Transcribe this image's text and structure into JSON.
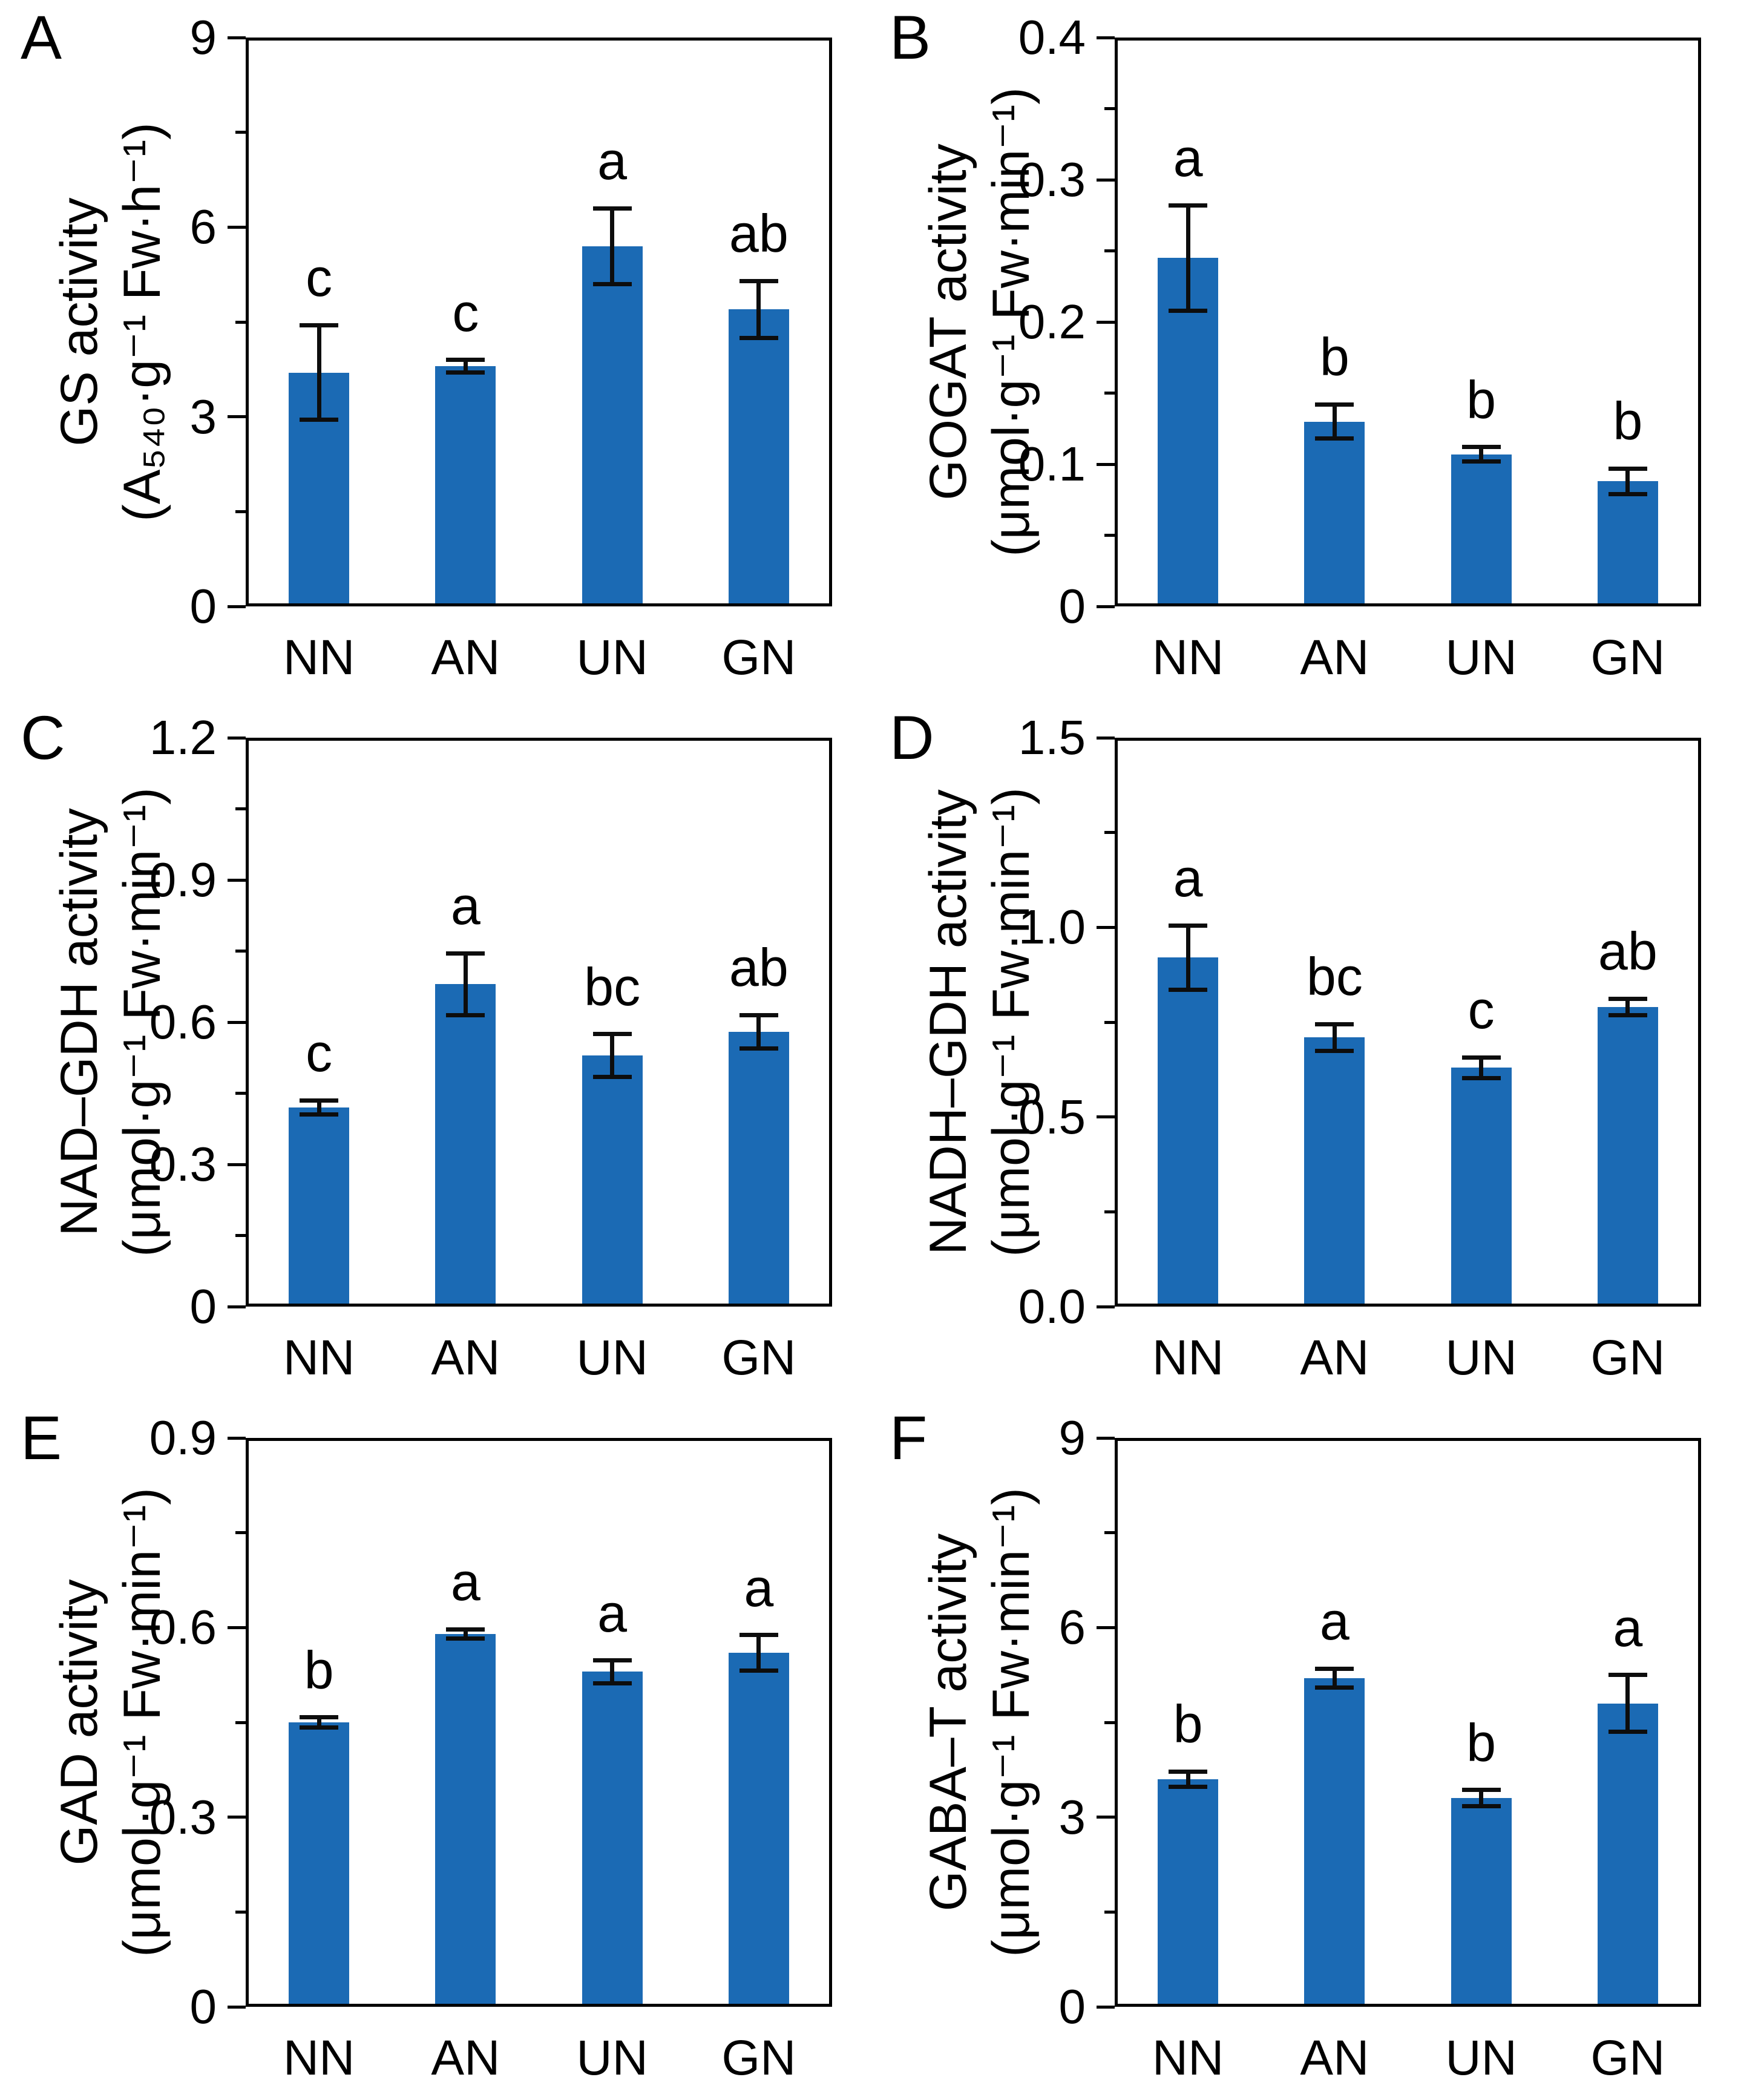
{
  "figure": {
    "bar_color": "#1b6ab4",
    "axis_color": "#000000",
    "error_bar_color": "#0d0d0d",
    "background": "#ffffff"
  },
  "chart_data": [
    {
      "type": "bar",
      "panel": "A",
      "title": "GS activity",
      "ylabel_line1": "GS activity",
      "ylabel_line2": "(A₅₄₀·g⁻¹ Fw·h⁻¹)",
      "xlabel": "",
      "categories": [
        "NN",
        "AN",
        "UN",
        "GN"
      ],
      "values": [
        3.7,
        3.8,
        5.7,
        4.7
      ],
      "errors": [
        0.75,
        0.1,
        0.6,
        0.45
      ],
      "sig_letters": [
        "c",
        "c",
        "a",
        "ab"
      ],
      "ylim": [
        0,
        9
      ],
      "yticks": [
        "0",
        "3",
        "6",
        "9"
      ],
      "minor_ticks": true,
      "grid": false,
      "legend": false
    },
    {
      "type": "bar",
      "panel": "B",
      "title": "GOGAT activity",
      "ylabel_line1": "GOGAT activity",
      "ylabel_line2": "(μmol·g⁻¹ Fw·min⁻¹)",
      "xlabel": "",
      "categories": [
        "NN",
        "AN",
        "UN",
        "GN"
      ],
      "values": [
        0.245,
        0.13,
        0.107,
        0.088
      ],
      "errors": [
        0.037,
        0.012,
        0.005,
        0.009
      ],
      "sig_letters": [
        "a",
        "b",
        "b",
        "b"
      ],
      "ylim": [
        0,
        0.4
      ],
      "yticks": [
        "0",
        "0.1",
        "0.2",
        "0.3",
        "0.4"
      ],
      "minor_ticks": true,
      "grid": false,
      "legend": false
    },
    {
      "type": "bar",
      "panel": "C",
      "title": "NAD–GDH activity",
      "ylabel_line1": "NAD–GDH activity",
      "ylabel_line2": "(μmol·g⁻¹ Fw·min⁻¹)",
      "xlabel": "",
      "categories": [
        "NN",
        "AN",
        "UN",
        "GN"
      ],
      "values": [
        0.42,
        0.68,
        0.53,
        0.58
      ],
      "errors": [
        0.015,
        0.065,
        0.045,
        0.035
      ],
      "sig_letters": [
        "c",
        "a",
        "bc",
        "ab"
      ],
      "ylim": [
        0,
        1.2
      ],
      "yticks": [
        "0",
        "0.3",
        "0.6",
        "0.9",
        "1.2"
      ],
      "minor_ticks": true,
      "grid": false,
      "legend": false
    },
    {
      "type": "bar",
      "panel": "D",
      "title": "NADH–GDH activity",
      "ylabel_line1": "NADH–GDH activity",
      "ylabel_line2": "(μmol·g⁻¹ Fw·min⁻¹)",
      "xlabel": "",
      "categories": [
        "NN",
        "AN",
        "UN",
        "GN"
      ],
      "values": [
        0.92,
        0.71,
        0.63,
        0.79
      ],
      "errors": [
        0.085,
        0.035,
        0.027,
        0.022
      ],
      "sig_letters": [
        "a",
        "bc",
        "c",
        "ab"
      ],
      "ylim": [
        0,
        1.5
      ],
      "yticks": [
        "0.0",
        "0.5",
        "1.0",
        "1.5"
      ],
      "minor_ticks": true,
      "grid": false,
      "legend": false
    },
    {
      "type": "bar",
      "panel": "E",
      "title": "GAD activity",
      "ylabel_line1": "GAD activity",
      "ylabel_line2": "(μmol·g⁻¹ Fw·min⁻¹)",
      "xlabel": "",
      "categories": [
        "NN",
        "AN",
        "UN",
        "GN"
      ],
      "values": [
        0.45,
        0.59,
        0.53,
        0.56
      ],
      "errors": [
        0.008,
        0.007,
        0.018,
        0.028
      ],
      "sig_letters": [
        "b",
        "a",
        "a",
        "a"
      ],
      "ylim": [
        0,
        0.9
      ],
      "yticks": [
        "0",
        "0.3",
        "0.6",
        "0.9"
      ],
      "minor_ticks": true,
      "grid": false,
      "legend": false
    },
    {
      "type": "bar",
      "panel": "F",
      "title": "GABA–T activity",
      "ylabel_line1": "GABA–T activity",
      "ylabel_line2": "(μmol·g⁻¹ Fw·min⁻¹)",
      "xlabel": "",
      "categories": [
        "NN",
        "AN",
        "UN",
        "GN"
      ],
      "values": [
        3.6,
        5.2,
        3.3,
        4.8
      ],
      "errors": [
        0.12,
        0.15,
        0.13,
        0.45
      ],
      "sig_letters": [
        "b",
        "a",
        "b",
        "a"
      ],
      "ylim": [
        0,
        9
      ],
      "yticks": [
        "0",
        "3",
        "6",
        "9"
      ],
      "minor_ticks": true,
      "grid": false,
      "legend": false
    }
  ]
}
